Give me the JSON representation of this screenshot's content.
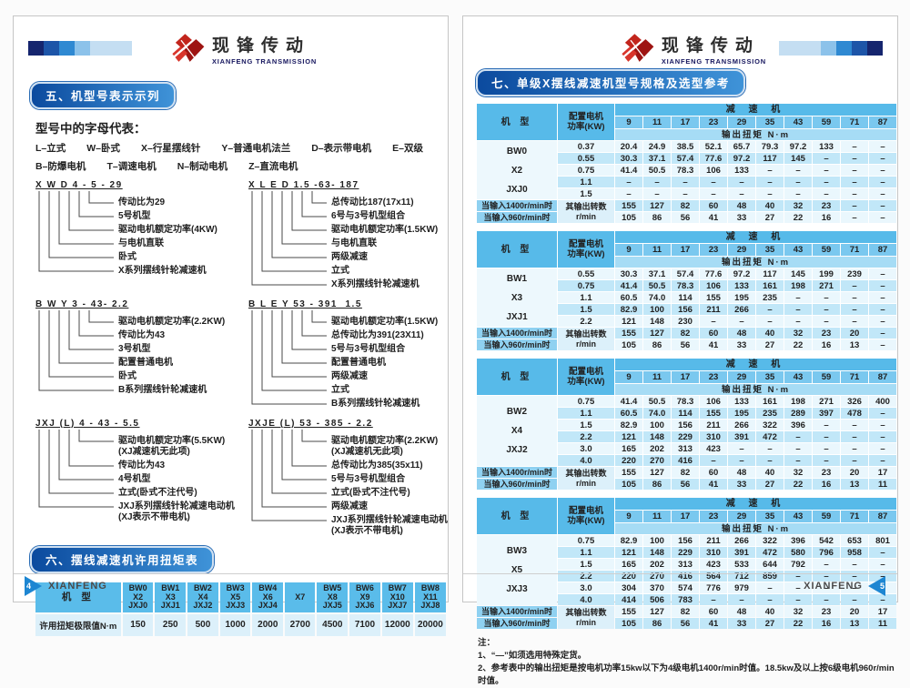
{
  "brand": {
    "name_cn": "现锋传动",
    "name_en": "XIANFENG TRANSMISSION"
  },
  "colors": {
    "table_header_blue": "#57bae9",
    "table_subheader_blue": "#7ac8ef",
    "stripe_light": "#eaf7fd",
    "stripe_mid": "#c1e7f8",
    "badge_gradient_start": "#0b4a9e",
    "badge_gradient_end": "#3f93d8",
    "logo_red": "#c2251c",
    "footer_triangle_blue": "#1d86d2"
  },
  "left_page": {
    "section5": {
      "title": "五、机型号表示示列",
      "intro": "型号中的字母代表：",
      "legend_rows": [
        [
          "L–立式",
          "W–卧式",
          "X–行星摆线针",
          "Y–普通电机法兰",
          "D–表示带电机",
          "E–双级"
        ],
        [
          "B–防爆电机",
          "T–调速电机",
          "N–制动电机",
          "Z–直流电机"
        ]
      ],
      "diagrams": [
        {
          "code": "X W D 4 - 5 - 29",
          "labels": [
            "传动比为29",
            "5号机型",
            "驱动电机额定功率(4KW)",
            "与电机直联",
            "卧式",
            "X系列摆线针轮减速机"
          ]
        },
        {
          "code": "X L E D 1.5 -63- 187",
          "labels": [
            "总传动比187(17x11)",
            "6号与3号机型组合",
            "驱动电机额定功率(1.5KW)",
            "与电机直联",
            "两级减速",
            "立式",
            "X系列摆线针轮减速机"
          ]
        },
        {
          "code": "B W Y 3 - 43- 2.2",
          "labels": [
            "驱动电机额定功率(2.2KW)",
            "传动比为43",
            "3号机型",
            "配置普通电机",
            "卧式",
            "B系列摆线针轮减速机"
          ]
        },
        {
          "code": "B L E Y 53 - 391  1.5",
          "labels": [
            "驱动电机额定功率(1.5KW)",
            "总传动比为391(23X11)",
            "5号与3号机型组合",
            "配置普通电机",
            "两级减速",
            "立式",
            "B系列摆线针轮减速机"
          ]
        },
        {
          "code": "JXJ (L) 4 - 43 - 5.5",
          "labels": [
            "驱动电机额定功率(5.5KW)\n(XJ减速机无此项)",
            "传动比为43",
            "4号机型",
            "立式(卧式不注代号)",
            "JXJ系列摆线针轮减速电动机\n(XJ表示不带电机)"
          ]
        },
        {
          "code": "JXJE (L) 53 - 385 - 2.2",
          "labels": [
            "驱动电机额定功率(2.2KW)\n(XJ减速机无此项)",
            "总传动比为385(35x11)",
            "5号与3号机型组合",
            "立式(卧式不注代号)",
            "两级减速",
            "JXJ系列摆线针轮减速电动机\n(XJ表示不带电机)"
          ]
        }
      ]
    },
    "section6": {
      "title": "六、摆线减速机许用扭矩表",
      "table": {
        "col_label": "机  型",
        "models": [
          "BW0\nX2\nJXJ0",
          "BW1\nX3\nJXJ1",
          "BW2\nX4\nJXJ2",
          "BW3\nX5\nJXJ3",
          "BW4\nX6\nJXJ4",
          "X7",
          "BW5\nX8\nJXJ5",
          "BW6\nX9\nJXJ6",
          "BW7\nX10\nJXJ7",
          "BW8\nX11\nJXJ8"
        ],
        "row_label": "许用扭矩极限值N·m",
        "values": [
          "150",
          "250",
          "500",
          "1000",
          "2000",
          "2700",
          "4500",
          "7100",
          "12000",
          "20000"
        ]
      }
    },
    "footer": {
      "brand": "XIANFENG",
      "page": "4"
    }
  },
  "right_page": {
    "section7": {
      "title": "七、单级X摆线减速机型号规格及选型参考",
      "common": {
        "model_header": "机  型",
        "power_header": "配置电机\n功率(KW)",
        "reducer_header": "减  速  机",
        "ratios": [
          "9",
          "11",
          "17",
          "23",
          "29",
          "35",
          "43",
          "59",
          "71",
          "87"
        ],
        "torque_header": "输出扭矩 N·m",
        "speed_row_labels": [
          "当输入1400r/min时",
          "当输入960r/min时"
        ],
        "speed_mid_label": "其输出转数r/min"
      },
      "tables": [
        {
          "model": "BW0\nX2\nJXJ0",
          "rows": [
            {
              "power": "0.37",
              "values": [
                "20.4",
                "24.9",
                "38.5",
                "52.1",
                "65.7",
                "79.3",
                "97.2",
                "133",
                "–",
                "–"
              ]
            },
            {
              "power": "0.55",
              "values": [
                "30.3",
                "37.1",
                "57.4",
                "77.6",
                "97.2",
                "117",
                "145",
                "–",
                "–",
                "–"
              ]
            },
            {
              "power": "0.75",
              "values": [
                "41.4",
                "50.5",
                "78.3",
                "106",
                "133",
                "–",
                "–",
                "–",
                "–",
                "–"
              ]
            },
            {
              "power": "1.1",
              "values": [
                "–",
                "–",
                "–",
                "–",
                "–",
                "–",
                "–",
                "–",
                "–",
                "–"
              ]
            },
            {
              "power": "1.5",
              "values": [
                "–",
                "–",
                "–",
                "–",
                "–",
                "–",
                "–",
                "–",
                "–",
                "–"
              ]
            }
          ],
          "speeds": [
            [
              "155",
              "127",
              "82",
              "60",
              "48",
              "40",
              "32",
              "23",
              "–",
              "–"
            ],
            [
              "105",
              "86",
              "56",
              "41",
              "33",
              "27",
              "22",
              "16",
              "–",
              "–"
            ]
          ]
        },
        {
          "model": "BW1\nX3\nJXJ1",
          "rows": [
            {
              "power": "0.55",
              "values": [
                "30.3",
                "37.1",
                "57.4",
                "77.6",
                "97.2",
                "117",
                "145",
                "199",
                "239",
                "–"
              ]
            },
            {
              "power": "0.75",
              "values": [
                "41.4",
                "50.5",
                "78.3",
                "106",
                "133",
                "161",
                "198",
                "271",
                "–",
                "–"
              ]
            },
            {
              "power": "1.1",
              "values": [
                "60.5",
                "74.0",
                "114",
                "155",
                "195",
                "235",
                "–",
                "–",
                "–",
                "–"
              ]
            },
            {
              "power": "1.5",
              "values": [
                "82.9",
                "100",
                "156",
                "211",
                "266",
                "–",
                "–",
                "–",
                "–",
                "–"
              ]
            },
            {
              "power": "2.2",
              "values": [
                "121",
                "148",
                "230",
                "–",
                "–",
                "–",
                "–",
                "–",
                "–",
                "–"
              ]
            }
          ],
          "speeds": [
            [
              "155",
              "127",
              "82",
              "60",
              "48",
              "40",
              "32",
              "23",
              "20",
              "–"
            ],
            [
              "105",
              "86",
              "56",
              "41",
              "33",
              "27",
              "22",
              "16",
              "13",
              "–"
            ]
          ]
        },
        {
          "model": "BW2\nX4\nJXJ2",
          "rows": [
            {
              "power": "0.75",
              "values": [
                "41.4",
                "50.5",
                "78.3",
                "106",
                "133",
                "161",
                "198",
                "271",
                "326",
                "400"
              ]
            },
            {
              "power": "1.1",
              "values": [
                "60.5",
                "74.0",
                "114",
                "155",
                "195",
                "235",
                "289",
                "397",
                "478",
                "–"
              ]
            },
            {
              "power": "1.5",
              "values": [
                "82.9",
                "100",
                "156",
                "211",
                "266",
                "322",
                "396",
                "–",
                "–",
                "–"
              ]
            },
            {
              "power": "2.2",
              "values": [
                "121",
                "148",
                "229",
                "310",
                "391",
                "472",
                "–",
                "–",
                "–",
                "–"
              ]
            },
            {
              "power": "3.0",
              "values": [
                "165",
                "202",
                "313",
                "423",
                "–",
                "–",
                "–",
                "–",
                "–",
                "–"
              ]
            },
            {
              "power": "4.0",
              "values": [
                "220",
                "270",
                "416",
                "–",
                "–",
                "–",
                "–",
                "–",
                "–",
                "–"
              ]
            }
          ],
          "speeds": [
            [
              "155",
              "127",
              "82",
              "60",
              "48",
              "40",
              "32",
              "23",
              "20",
              "17"
            ],
            [
              "105",
              "86",
              "56",
              "41",
              "33",
              "27",
              "22",
              "16",
              "13",
              "11"
            ]
          ]
        },
        {
          "model": "BW3\nX5\nJXJ3",
          "rows": [
            {
              "power": "0.75",
              "values": [
                "82.9",
                "100",
                "156",
                "211",
                "266",
                "322",
                "396",
                "542",
                "653",
                "801"
              ]
            },
            {
              "power": "1.1",
              "values": [
                "121",
                "148",
                "229",
                "310",
                "391",
                "472",
                "580",
                "796",
                "958",
                "–"
              ]
            },
            {
              "power": "1.5",
              "values": [
                "165",
                "202",
                "313",
                "423",
                "533",
                "644",
                "792",
                "–",
                "–",
                "–"
              ]
            },
            {
              "power": "2.2",
              "values": [
                "220",
                "270",
                "416",
                "564",
                "712",
                "859",
                "–",
                "–",
                "–",
                "–"
              ]
            },
            {
              "power": "3.0",
              "values": [
                "304",
                "370",
                "574",
                "776",
                "979",
                "–",
                "–",
                "–",
                "–",
                "–"
              ]
            },
            {
              "power": "4.0",
              "values": [
                "414",
                "506",
                "783",
                "–",
                "–",
                "–",
                "–",
                "–",
                "–",
                "–"
              ]
            }
          ],
          "speeds": [
            [
              "155",
              "127",
              "82",
              "60",
              "48",
              "40",
              "32",
              "23",
              "20",
              "17"
            ],
            [
              "105",
              "86",
              "56",
              "41",
              "33",
              "27",
              "22",
              "16",
              "13",
              "11"
            ]
          ]
        }
      ]
    },
    "notes": [
      "注：",
      "1、“—”如须选用特殊定货。",
      "2、参考表中的输出扭矩是按电机功率15kw以下为4级电机1400r/min时值。18.5kw及以上按6级电机960r/min时值。"
    ],
    "footer": {
      "brand": "XIANFENG",
      "page": "5"
    }
  }
}
